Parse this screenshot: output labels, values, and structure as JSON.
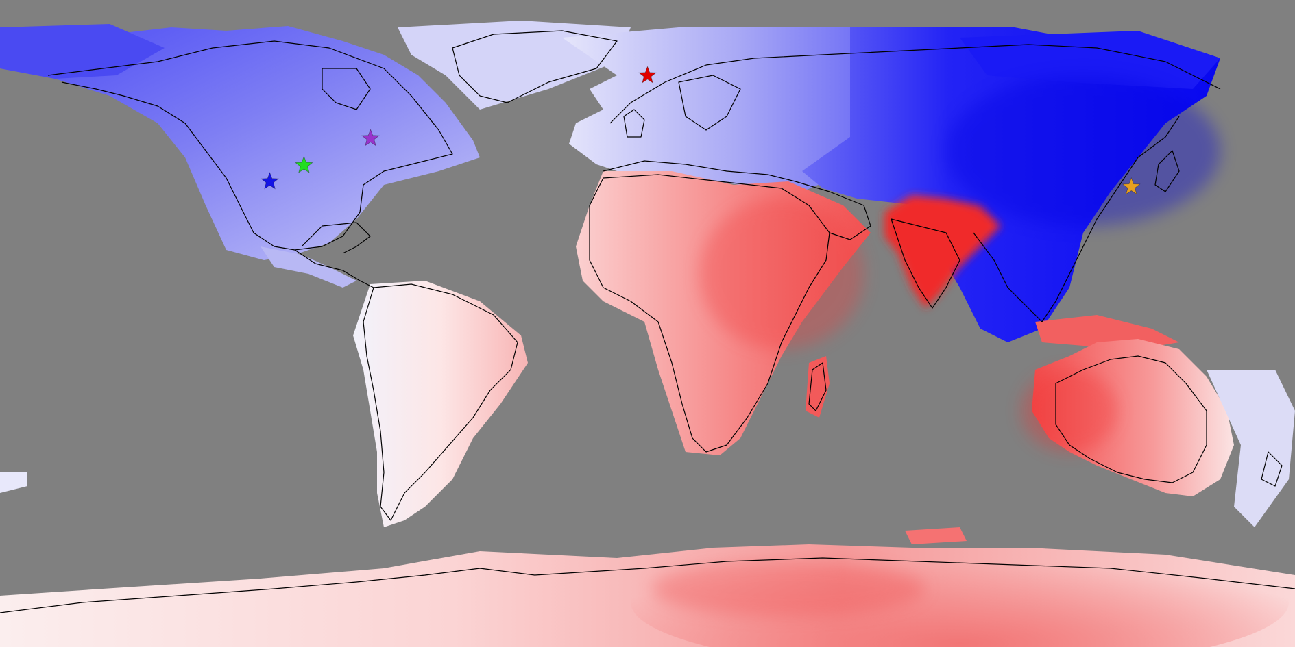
{
  "map": {
    "projection": "equirectangular",
    "background_color": "#808080",
    "coastline_color": "#000000",
    "color_scale": {
      "negative": "#0000ff",
      "neutral": "#ffffff",
      "positive": "#ff2a2a"
    },
    "regions": [
      {
        "name": "north-america",
        "tone": "blue",
        "level": 0.45
      },
      {
        "name": "greenland",
        "tone": "blue",
        "level": 0.2
      },
      {
        "name": "south-america",
        "tone": "red",
        "level": 0.2
      },
      {
        "name": "europe",
        "tone": "blue",
        "level": 0.15
      },
      {
        "name": "africa",
        "tone": "red",
        "level": 0.55
      },
      {
        "name": "arabia",
        "tone": "red",
        "level": 0.6
      },
      {
        "name": "india",
        "tone": "red",
        "level": 0.9
      },
      {
        "name": "east-asia",
        "tone": "blue",
        "level": 0.95
      },
      {
        "name": "southeast-asia",
        "tone": "blue",
        "level": 0.7
      },
      {
        "name": "australia",
        "tone": "red",
        "level": 0.55
      },
      {
        "name": "antarctica",
        "tone": "red",
        "level": 0.35
      },
      {
        "name": "madagascar",
        "tone": "red",
        "level": 0.6
      }
    ],
    "markers": [
      {
        "name": "marker-blue",
        "color": "#1414e6",
        "lon": -105.0,
        "lat": 39.5
      },
      {
        "name": "marker-green",
        "color": "#22dd22",
        "lon": -95.5,
        "lat": 44.0
      },
      {
        "name": "marker-purple",
        "color": "#9933cc",
        "lon": -77.0,
        "lat": 51.5
      },
      {
        "name": "marker-red",
        "color": "#e00000",
        "lon": 0.0,
        "lat": 69.0
      },
      {
        "name": "marker-orange",
        "color": "#e8a020",
        "lon": 134.5,
        "lat": 38.0
      }
    ]
  }
}
